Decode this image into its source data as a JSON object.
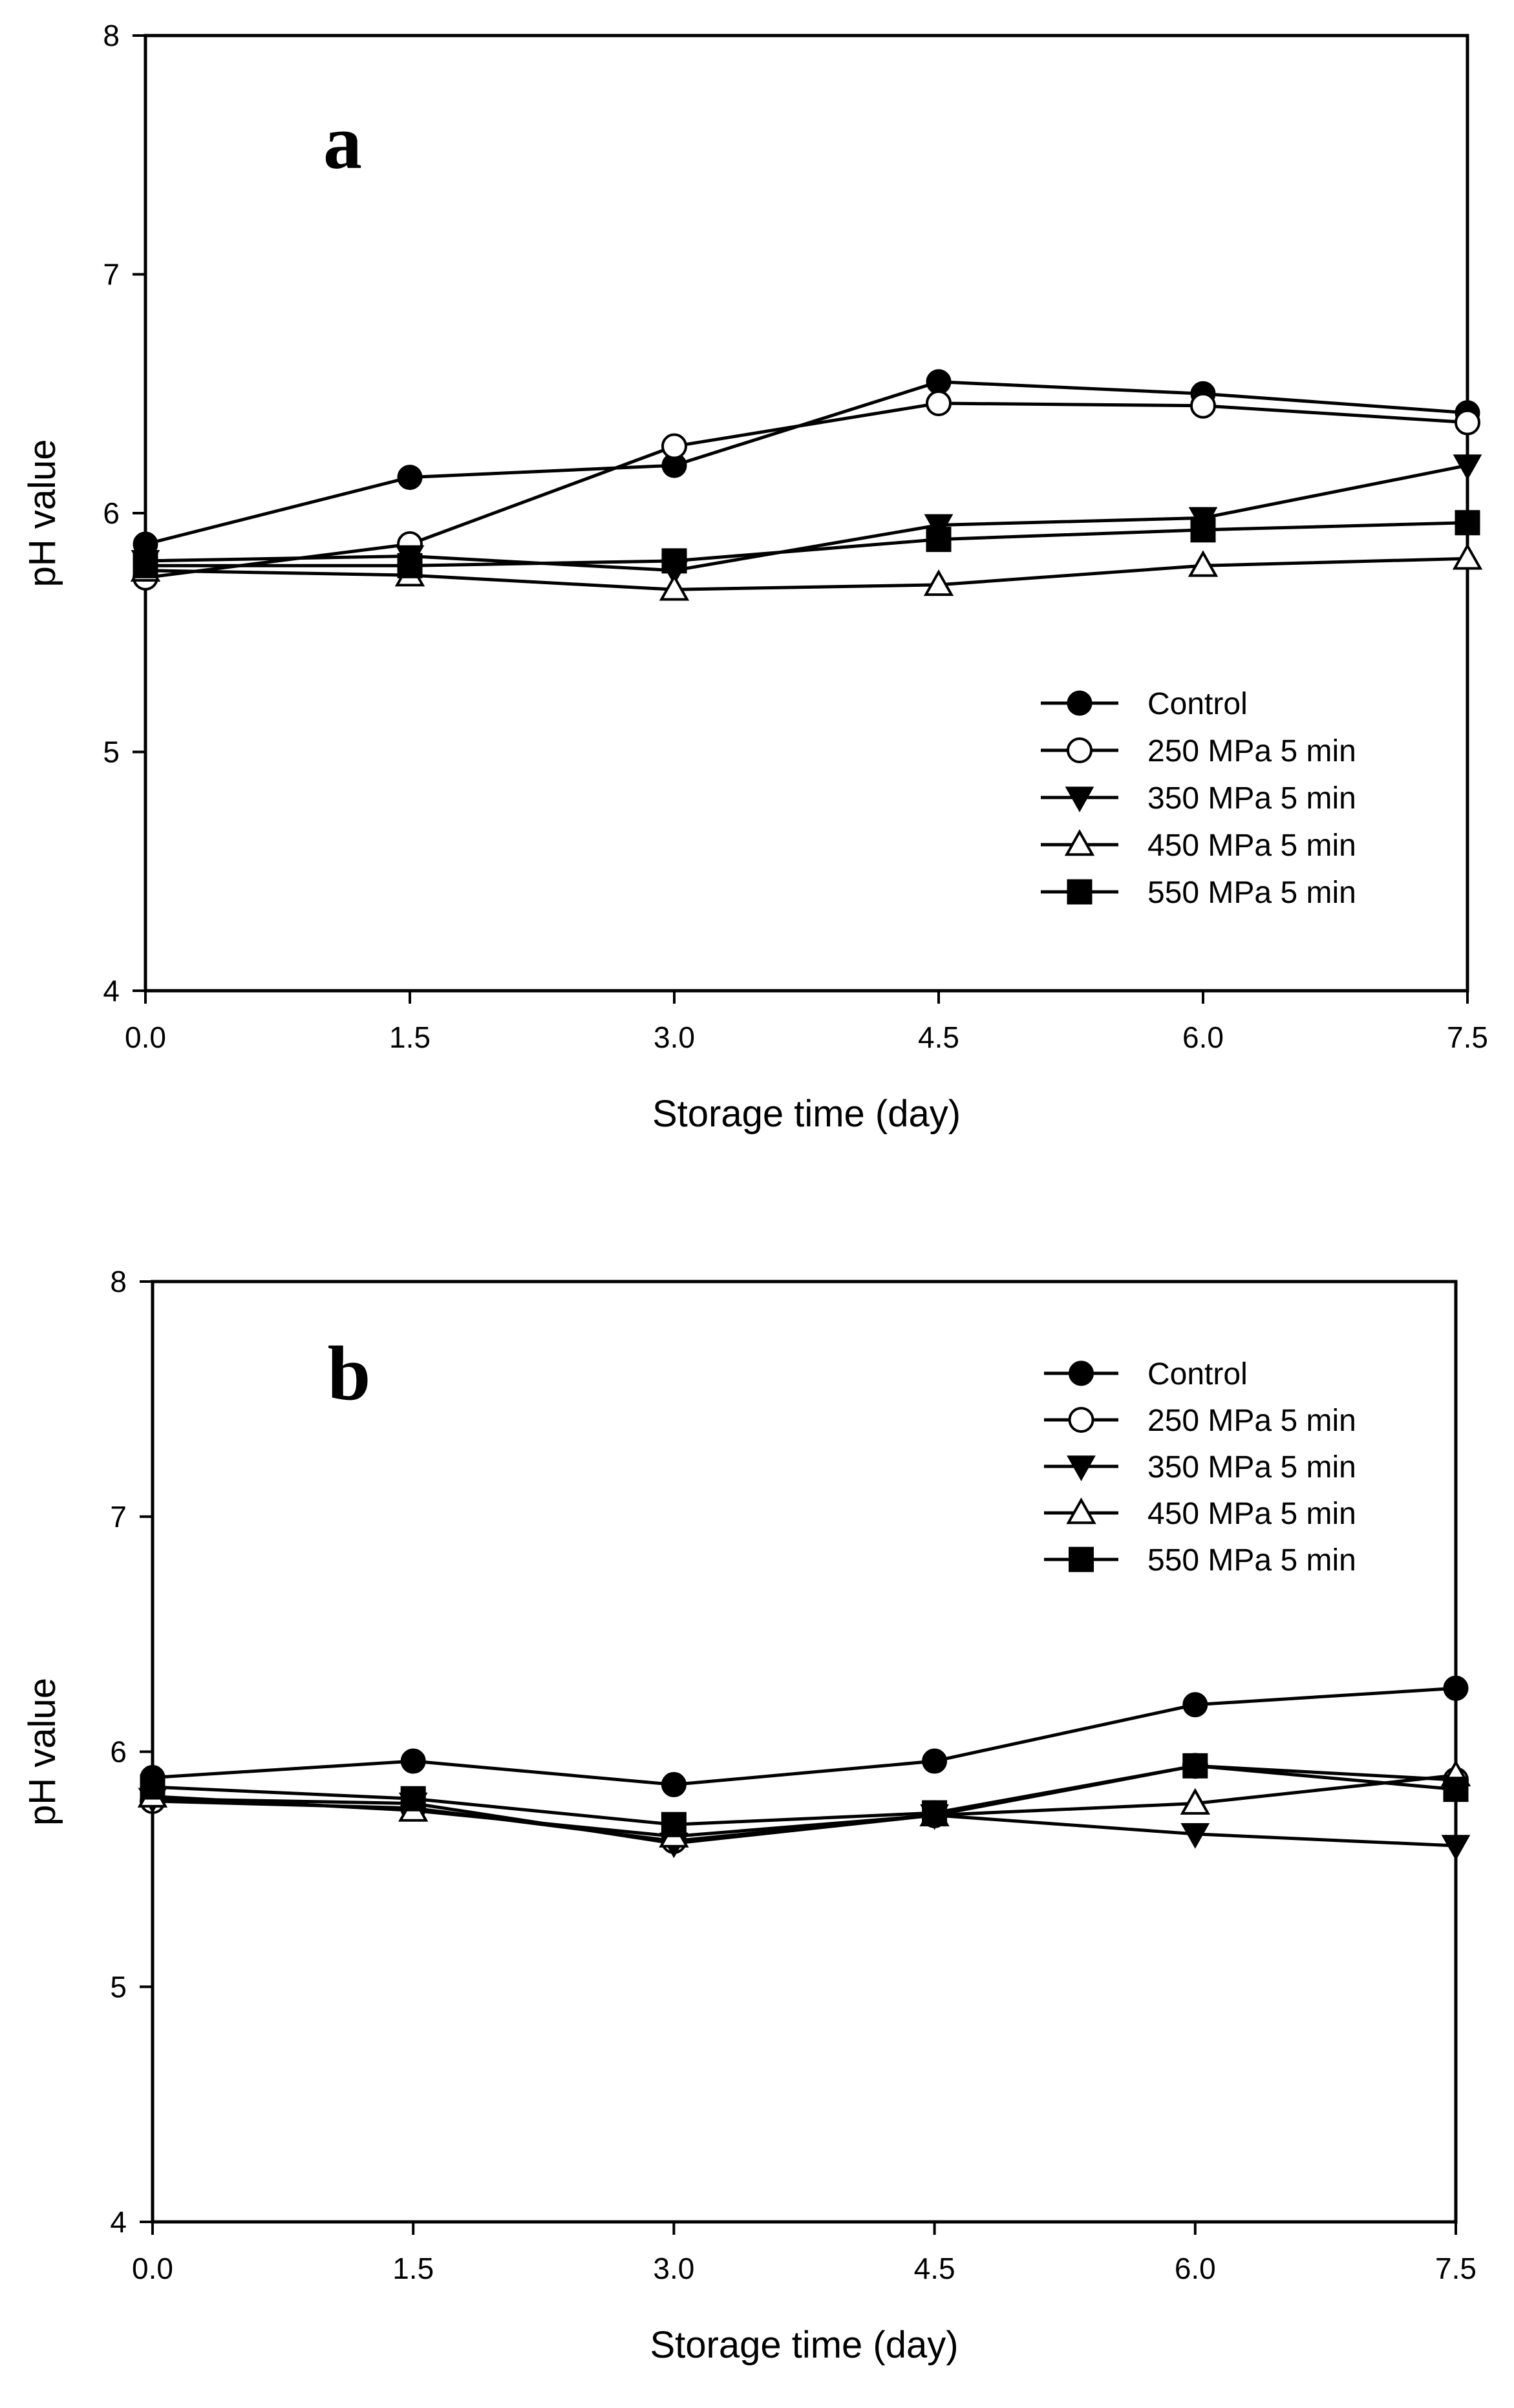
{
  "chart_data": [
    {
      "type": "line",
      "panel_label": "a",
      "xlabel": "Storage time (day)",
      "ylabel": "pH value",
      "xlim": [
        0,
        7.5
      ],
      "ylim": [
        4,
        8
      ],
      "x": [
        0.0,
        1.5,
        3.0,
        4.5,
        6.0,
        7.5
      ],
      "x_tick_labels": [
        "0.0",
        "1.5",
        "3.0",
        "4.5",
        "6.0",
        "7.5"
      ],
      "y_tick_labels": [
        "4",
        "5",
        "6",
        "7",
        "8"
      ],
      "grid": false,
      "legend_position": "bottom-right",
      "series": [
        {
          "name": "Control",
          "marker": "filled-circle",
          "values": [
            5.87,
            6.15,
            6.2,
            6.55,
            6.5,
            6.42
          ]
        },
        {
          "name": "250 MPa 5 min",
          "marker": "open-circle",
          "values": [
            5.73,
            5.87,
            6.28,
            6.46,
            6.45,
            6.38
          ]
        },
        {
          "name": "350 MPa 5 min",
          "marker": "filled-triangle-down",
          "values": [
            5.8,
            5.82,
            5.76,
            5.95,
            5.98,
            6.2
          ]
        },
        {
          "name": "450 MPa 5 min",
          "marker": "open-triangle-up",
          "values": [
            5.76,
            5.74,
            5.68,
            5.7,
            5.78,
            5.81
          ]
        },
        {
          "name": "550 MPa 5 min",
          "marker": "filled-square",
          "values": [
            5.78,
            5.78,
            5.8,
            5.89,
            5.93,
            5.96
          ]
        }
      ]
    },
    {
      "type": "line",
      "panel_label": "b",
      "xlabel": "Storage time (day)",
      "ylabel": "pH value",
      "xlim": [
        0,
        7.5
      ],
      "ylim": [
        4,
        8
      ],
      "x": [
        0.0,
        1.5,
        3.0,
        4.5,
        6.0,
        7.5
      ],
      "x_tick_labels": [
        "0.0",
        "1.5",
        "3.0",
        "4.5",
        "6.0",
        "7.5"
      ],
      "y_tick_labels": [
        "4",
        "5",
        "6",
        "7",
        "8"
      ],
      "grid": false,
      "legend_position": "top-right",
      "series": [
        {
          "name": "Control",
          "marker": "filled-circle",
          "values": [
            5.89,
            5.96,
            5.86,
            5.96,
            6.2,
            6.27
          ]
        },
        {
          "name": "250 MPa 5 min",
          "marker": "open-circle",
          "values": [
            5.79,
            5.76,
            5.62,
            5.73,
            5.94,
            5.88
          ]
        },
        {
          "name": "350 MPa 5 min",
          "marker": "filled-triangle-down",
          "values": [
            5.8,
            5.78,
            5.61,
            5.73,
            5.65,
            5.6
          ]
        },
        {
          "name": "450 MPa 5 min",
          "marker": "open-triangle-up",
          "values": [
            5.81,
            5.75,
            5.64,
            5.73,
            5.78,
            5.9
          ]
        },
        {
          "name": "550 MPa 5 min",
          "marker": "filled-square",
          "values": [
            5.85,
            5.8,
            5.69,
            5.74,
            5.94,
            5.84
          ]
        }
      ]
    }
  ]
}
